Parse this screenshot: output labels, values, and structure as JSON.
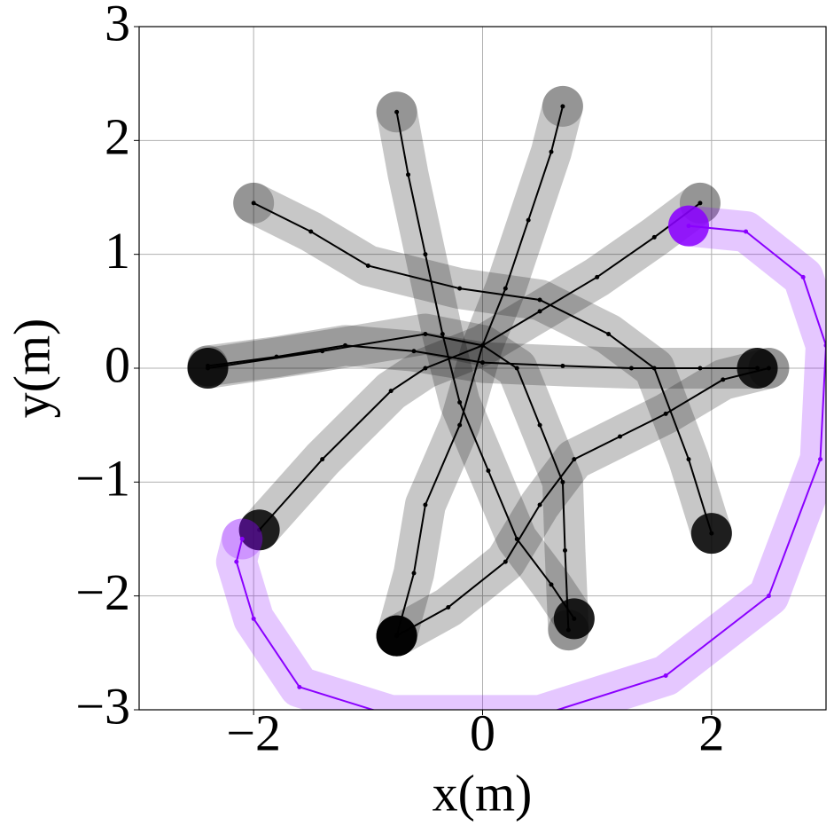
{
  "chart_data": {
    "type": "line",
    "xlabel": "x(m)",
    "ylabel": "y(m)",
    "xlim": [
      -3,
      3
    ],
    "ylim": [
      -3,
      3
    ],
    "xticks": [
      {
        "value": -2,
        "label": "−2"
      },
      0,
      2
    ],
    "yticks": [
      {
        "value": -3,
        "label": "−3"
      },
      {
        "value": -2,
        "label": "−2"
      },
      {
        "value": -1,
        "label": "−1"
      },
      0,
      1,
      2,
      3
    ],
    "grid": true,
    "series": [
      {
        "color": "#000000",
        "x": [
          -2.4,
          -1.8,
          -1.2,
          -0.6,
          0,
          0.7,
          1.3,
          1.9,
          2.4
        ],
        "y": [
          0.02,
          0.1,
          0.2,
          0.15,
          0.05,
          0.02,
          0,
          0,
          0
        ]
      },
      {
        "color": "#000000",
        "x": [
          -2,
          -1.5,
          -1,
          -0.2,
          0.5,
          1.1,
          1.5,
          1.8,
          2
        ],
        "y": [
          1.45,
          1.2,
          0.9,
          0.7,
          0.6,
          0.3,
          0,
          -0.8,
          -1.45
        ]
      },
      {
        "color": "#000000",
        "x": [
          -0.75,
          -0.65,
          -0.5,
          -0.35,
          -0.2,
          0.05,
          0.3,
          0.6,
          0.8
        ],
        "y": [
          2.25,
          1.7,
          1,
          0.3,
          -0.3,
          -0.9,
          -1.5,
          -1.9,
          -2.2
        ]
      },
      {
        "color": "#000000",
        "x": [
          0.7,
          0.6,
          0.4,
          0.2,
          0,
          -0.2,
          -0.5,
          -0.6,
          -0.75
        ],
        "y": [
          2.3,
          1.9,
          1.3,
          0.7,
          0.2,
          -0.5,
          -1.2,
          -1.8,
          -2.35
        ]
      },
      {
        "color": "#000000",
        "x": [
          1.9,
          1.5,
          1,
          0.5,
          0,
          -0.5,
          -0.8,
          -1.4,
          -1.95
        ],
        "y": [
          1.45,
          1.15,
          0.8,
          0.5,
          0.2,
          0,
          -0.2,
          -0.8,
          -1.42
        ]
      },
      {
        "color": "#000000",
        "x": [
          2.5,
          2.1,
          1.6,
          1.2,
          0.8,
          0.5,
          0.2,
          -0.3,
          -0.75
        ],
        "y": [
          0,
          -0.1,
          -0.4,
          -0.6,
          -0.8,
          -1.2,
          -1.7,
          -2.1,
          -2.35
        ]
      },
      {
        "color": "#000000",
        "x": [
          0.75,
          0.72,
          0.7,
          0.5,
          0.3,
          0,
          -0.5,
          -1.4,
          -2.4
        ],
        "y": [
          -2.3,
          -1.6,
          -1,
          -0.5,
          0,
          0.2,
          0.3,
          0.15,
          0
        ]
      },
      {
        "color": "#8a00ff",
        "x": [
          -2.1,
          -2.15,
          -2,
          -1.6,
          -0.8,
          0.5,
          1.6,
          2.5,
          2.95,
          3,
          2.8,
          2.3,
          1.8
        ],
        "y": [
          -1.5,
          -1.7,
          -2.2,
          -2.8,
          -3.05,
          -3.05,
          -2.7,
          -2,
          -0.8,
          0.2,
          0.8,
          1.2,
          1.25
        ]
      }
    ]
  }
}
